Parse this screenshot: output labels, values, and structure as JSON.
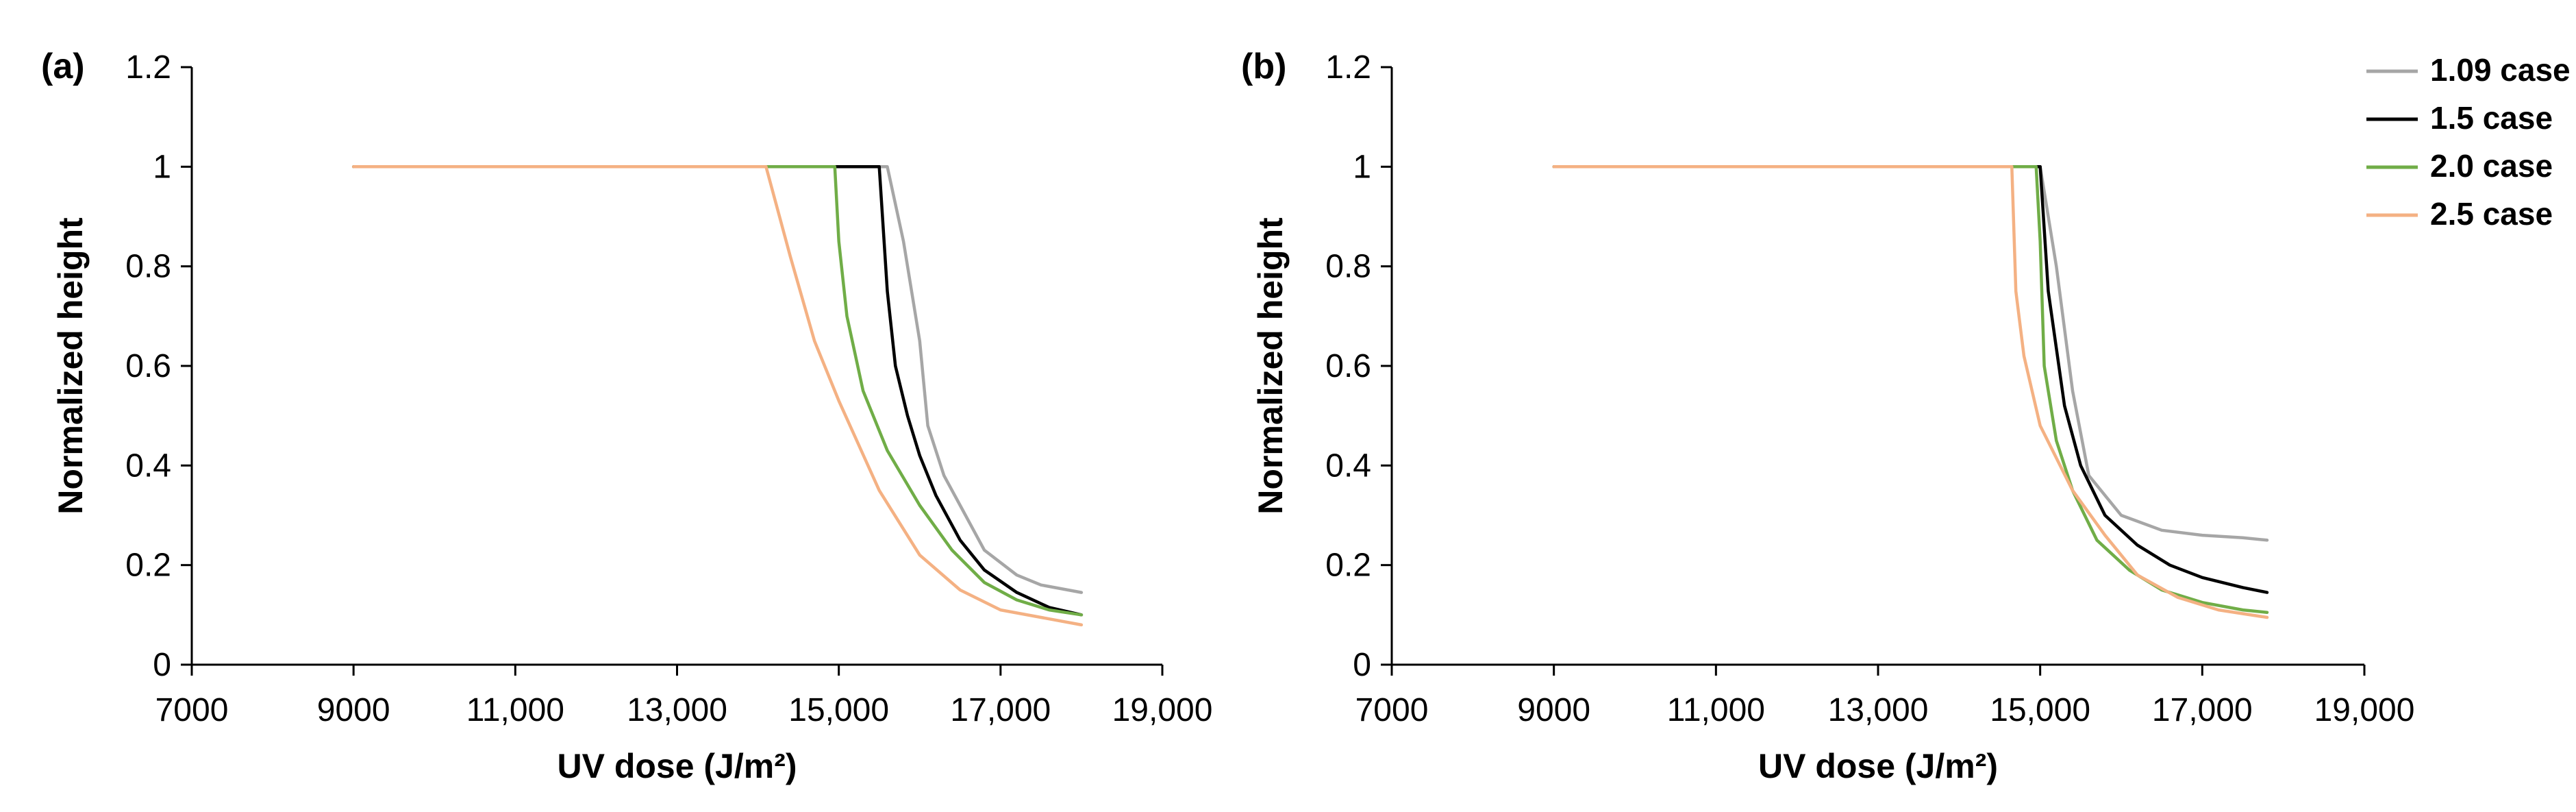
{
  "legend": {
    "items": [
      {
        "label": "1.09 case",
        "color": "#a6a6a6"
      },
      {
        "label": "1.5 case",
        "color": "#000000"
      },
      {
        "label": "2.0 case",
        "color": "#70ad47"
      },
      {
        "label": "2.5 case",
        "color": "#f4b183"
      }
    ]
  },
  "chart_data": [
    {
      "type": "line",
      "panel_label": "(a)",
      "xlabel": "UV dose (J/m²)",
      "ylabel": "Normalized height",
      "xlim": [
        7000,
        19000
      ],
      "ylim": [
        0,
        1.2
      ],
      "x_ticks": [
        7000,
        9000,
        11000,
        13000,
        15000,
        17000,
        19000
      ],
      "x_tick_labels": [
        "7000",
        "9000",
        "11,000",
        "13,000",
        "15,000",
        "17,000",
        "19,000"
      ],
      "y_ticks": [
        0,
        0.2,
        0.4,
        0.6,
        0.8,
        1,
        1.2
      ],
      "y_tick_labels": [
        "0",
        "0.2",
        "0.4",
        "0.6",
        "0.8",
        "1",
        "1.2"
      ],
      "grid": false,
      "series": [
        {
          "name": "1.09 case",
          "color": "#a6a6a6",
          "x": [
            9000,
            15000,
            15600,
            15800,
            16000,
            16100,
            16300,
            16500,
            16800,
            17200,
            17500,
            18000
          ],
          "y": [
            1,
            1,
            1,
            0.85,
            0.65,
            0.48,
            0.38,
            0.32,
            0.23,
            0.18,
            0.16,
            0.145
          ]
        },
        {
          "name": "1.5 case",
          "color": "#000000",
          "x": [
            9000,
            15000,
            15500,
            15600,
            15700,
            15850,
            16000,
            16200,
            16500,
            16800,
            17200,
            17600,
            18000
          ],
          "y": [
            1,
            1,
            1,
            0.75,
            0.6,
            0.5,
            0.42,
            0.34,
            0.25,
            0.19,
            0.145,
            0.115,
            0.1
          ]
        },
        {
          "name": "2.0 case",
          "color": "#70ad47",
          "x": [
            9000,
            14100,
            14950,
            15000,
            15100,
            15300,
            15600,
            16000,
            16400,
            16800,
            17200,
            17600,
            18000
          ],
          "y": [
            1,
            1,
            1,
            0.85,
            0.7,
            0.55,
            0.43,
            0.32,
            0.23,
            0.165,
            0.13,
            0.11,
            0.1
          ]
        },
        {
          "name": "2.5 case",
          "color": "#f4b183",
          "x": [
            9000,
            14100,
            14400,
            14700,
            15000,
            15500,
            16000,
            16500,
            17000,
            17500,
            18000
          ],
          "y": [
            1,
            1,
            0.82,
            0.65,
            0.53,
            0.35,
            0.22,
            0.15,
            0.11,
            0.095,
            0.08
          ]
        }
      ]
    },
    {
      "type": "line",
      "panel_label": "(b)",
      "xlabel": "UV dose (J/m²)",
      "ylabel": "Normalized height",
      "xlim": [
        7000,
        19000
      ],
      "ylim": [
        0,
        1.2
      ],
      "x_ticks": [
        7000,
        9000,
        11000,
        13000,
        15000,
        17000,
        19000
      ],
      "x_tick_labels": [
        "7000",
        "9000",
        "11,000",
        "13,000",
        "15,000",
        "17,000",
        "19,000"
      ],
      "y_ticks": [
        0,
        0.2,
        0.4,
        0.6,
        0.8,
        1,
        1.2
      ],
      "y_tick_labels": [
        "0",
        "0.2",
        "0.4",
        "0.6",
        "0.8",
        "1",
        "1.2"
      ],
      "grid": false,
      "series": [
        {
          "name": "1.09 case",
          "color": "#a6a6a6",
          "x": [
            9000,
            14950,
            15000,
            15200,
            15400,
            15600,
            16000,
            16500,
            17000,
            17500,
            17800
          ],
          "y": [
            1,
            1,
            1,
            0.8,
            0.55,
            0.38,
            0.3,
            0.27,
            0.26,
            0.255,
            0.25
          ]
        },
        {
          "name": "1.5 case",
          "color": "#000000",
          "x": [
            9000,
            14950,
            15000,
            15100,
            15300,
            15500,
            15800,
            16200,
            16600,
            17000,
            17500,
            17800
          ],
          "y": [
            1,
            1,
            1,
            0.75,
            0.52,
            0.4,
            0.3,
            0.24,
            0.2,
            0.175,
            0.155,
            0.145
          ]
        },
        {
          "name": "2.0 case",
          "color": "#70ad47",
          "x": [
            9000,
            14950,
            15000,
            15050,
            15200,
            15400,
            15700,
            16100,
            16500,
            17000,
            17500,
            17800
          ],
          "y": [
            1,
            1,
            0.85,
            0.6,
            0.45,
            0.35,
            0.25,
            0.19,
            0.15,
            0.125,
            0.11,
            0.105
          ]
        },
        {
          "name": "2.5 case",
          "color": "#f4b183",
          "x": [
            9000,
            14650,
            14700,
            14800,
            15000,
            15400,
            15800,
            16200,
            16700,
            17200,
            17800
          ],
          "y": [
            1,
            1,
            0.75,
            0.62,
            0.48,
            0.35,
            0.26,
            0.18,
            0.135,
            0.11,
            0.095
          ]
        }
      ]
    }
  ]
}
